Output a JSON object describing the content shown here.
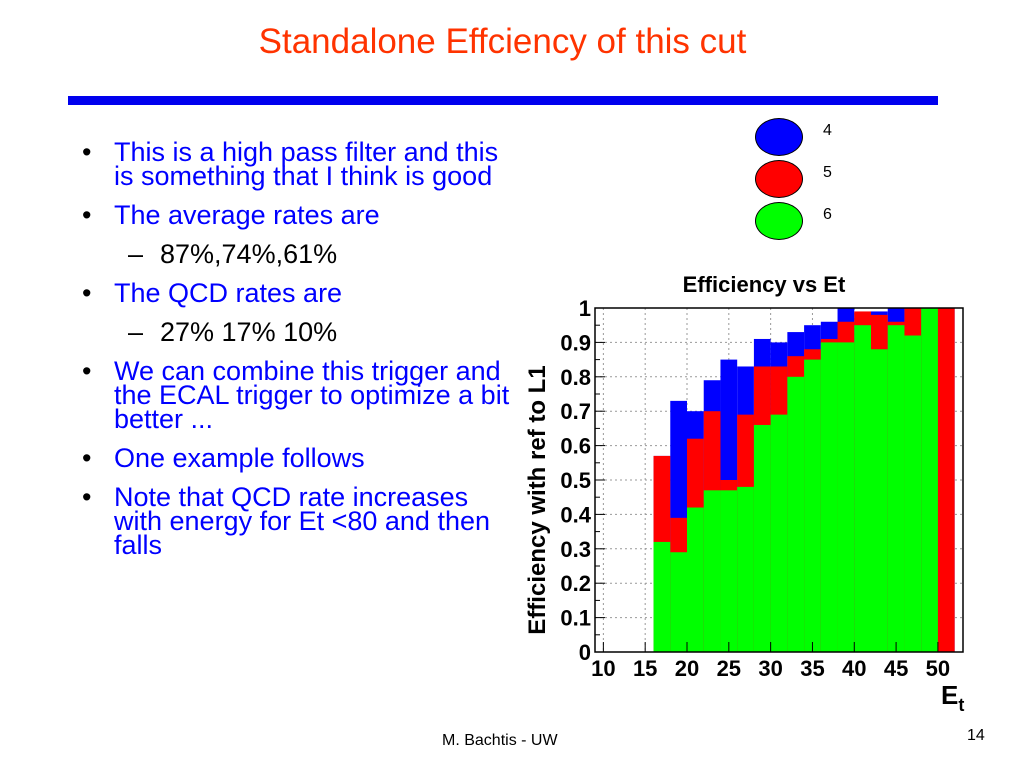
{
  "slide": {
    "title": "Standalone Effciency of this cut",
    "footer": "M. Bachtis - UW",
    "page_number": "14",
    "rule_color": "#0000ee",
    "title_color": "#ff3300"
  },
  "bullets": [
    {
      "type": "bullet",
      "color": "blue",
      "text": "This is a high pass filter and this is something that I think is good"
    },
    {
      "type": "bullet",
      "color": "blue",
      "text": "The average rates are"
    },
    {
      "type": "sub",
      "text": "87%,74%,61%"
    },
    {
      "type": "bullet",
      "color": "blue",
      "text": "The QCD rates are"
    },
    {
      "type": "sub",
      "text": "27% 17% 10%"
    },
    {
      "type": "bullet",
      "color": "blue",
      "text": "We can combine this trigger and the ECAL trigger to optimize a bit better ..."
    },
    {
      "type": "bullet",
      "color": "blue",
      "text": "One example follows"
    },
    {
      "type": "bullet",
      "color": "blue",
      "text": "Note that QCD rate increases with energy for Et <80 and then falls"
    }
  ],
  "bullet_markers": {
    "bullet": "•",
    "sub": "–"
  },
  "legend": [
    {
      "label": "4",
      "color": "#0000ff"
    },
    {
      "label": "5",
      "color": "#ff0000"
    },
    {
      "label": "6",
      "color": "#00ff00"
    }
  ],
  "chart_data": {
    "type": "histogram",
    "title": "Efficiency vs Et",
    "xlabel": "E_t",
    "xlabel_main": "E",
    "xlabel_sub": "t",
    "ylabel": "Efficiency with ref to L1",
    "xlim": [
      9,
      53
    ],
    "ylim": [
      0,
      1
    ],
    "xticks": [
      "10",
      "15",
      "20",
      "25",
      "30",
      "35",
      "40",
      "45",
      "50"
    ],
    "yticks": [
      "0",
      "0.1",
      "0.2",
      "0.3",
      "0.4",
      "0.5",
      "0.6",
      "0.7",
      "0.8",
      "0.9",
      "1"
    ],
    "grid": true,
    "bin_edges": [
      16,
      18,
      20,
      22,
      24,
      26,
      28,
      30,
      32,
      34,
      36,
      38,
      40,
      42,
      44,
      46,
      48,
      50,
      52
    ],
    "series": [
      {
        "name": "4",
        "color": "#0000ff",
        "values": [
          0.57,
          0.73,
          0.7,
          0.79,
          0.85,
          0.83,
          0.91,
          0.9,
          0.93,
          0.95,
          0.96,
          1.0,
          0.98,
          0.99,
          1.0,
          1.0,
          1.0,
          1.0
        ]
      },
      {
        "name": "5",
        "color": "#ff0000",
        "values": [
          0.57,
          0.39,
          0.62,
          0.7,
          0.5,
          0.69,
          0.83,
          0.83,
          0.86,
          0.88,
          0.91,
          0.96,
          0.99,
          0.98,
          0.96,
          1.0,
          1.0,
          1.0
        ]
      },
      {
        "name": "6",
        "color": "#00ff00",
        "values": [
          0.32,
          0.29,
          0.42,
          0.47,
          0.47,
          0.48,
          0.66,
          0.69,
          0.8,
          0.85,
          0.9,
          0.9,
          0.95,
          0.88,
          0.95,
          0.92,
          1.0,
          0.0
        ]
      }
    ]
  }
}
